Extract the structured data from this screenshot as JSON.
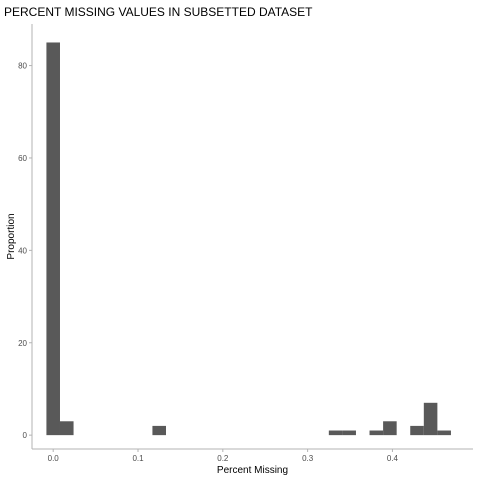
{
  "chart_data": {
    "type": "bar",
    "title": "PERCENT MISSING VALUES IN SUBSETTED DATASET",
    "xlabel": "Percent Missing",
    "ylabel": "Proportion",
    "xlim": [
      -0.025,
      0.495
    ],
    "ylim": [
      -3,
      89
    ],
    "xticks": [
      0.0,
      0.1,
      0.2,
      0.3,
      0.4
    ],
    "xtick_labels": [
      "0.0",
      "0.1",
      "0.2",
      "0.3",
      "0.4"
    ],
    "yticks": [
      0,
      20,
      40,
      60,
      80
    ],
    "ytick_labels": [
      "0",
      "20",
      "40",
      "60",
      "80"
    ],
    "bin_width": 0.016,
    "grid": false,
    "bar_color": "#595959",
    "bins": [
      {
        "x": 0.0,
        "value": 85
      },
      {
        "x": 0.016,
        "value": 3
      },
      {
        "x": 0.125,
        "value": 2
      },
      {
        "x": 0.333,
        "value": 1
      },
      {
        "x": 0.349,
        "value": 1
      },
      {
        "x": 0.381,
        "value": 1
      },
      {
        "x": 0.397,
        "value": 3
      },
      {
        "x": 0.429,
        "value": 2
      },
      {
        "x": 0.445,
        "value": 7
      },
      {
        "x": 0.461,
        "value": 1
      }
    ]
  }
}
